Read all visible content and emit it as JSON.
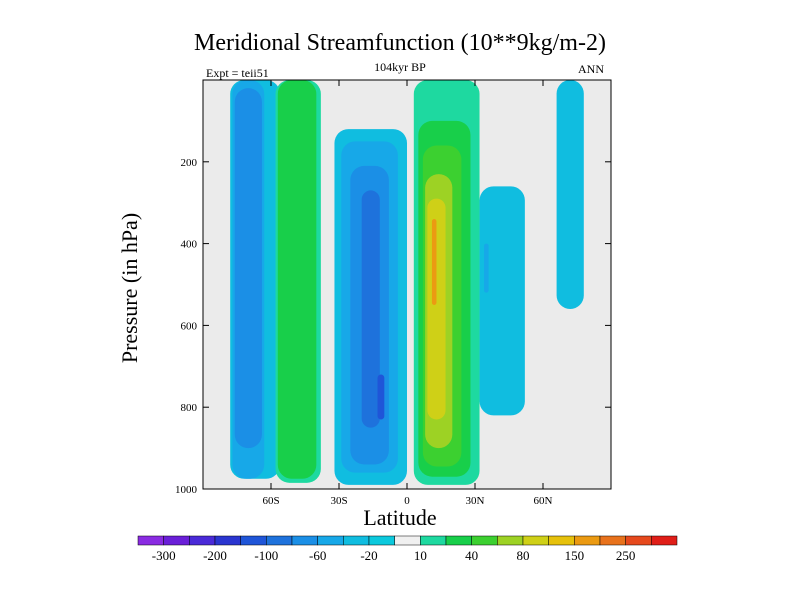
{
  "header": {
    "title": "Meridional Streamfunction (10**9kg/m-2)",
    "left_label": "Expt = teii51",
    "center_label": "104kyr BP",
    "right_label": "ANN"
  },
  "chart_data": {
    "type": "heatmap",
    "title": "Meridional Streamfunction (10**9kg/m-2)",
    "xlabel": "Latitude",
    "ylabel": "Pressure (in hPa)",
    "xlim": [
      -90,
      90
    ],
    "ylim": [
      0,
      1000
    ],
    "y_inverted": true,
    "xticks": [
      {
        "value": -60,
        "label": "60S"
      },
      {
        "value": -30,
        "label": "30S"
      },
      {
        "value": 0,
        "label": "0"
      },
      {
        "value": 30,
        "label": "30N"
      },
      {
        "value": 60,
        "label": "60N"
      }
    ],
    "yticks": [
      200,
      400,
      600,
      800,
      1000
    ],
    "colorbar": {
      "colors": [
        "#8a2be2",
        "#6a1fd8",
        "#4a2ad8",
        "#2a35d0",
        "#1f55d8",
        "#1e72dc",
        "#1b8fe6",
        "#17a8e8",
        "#10bde0",
        "#0cc9dd",
        "#f0f0f0",
        "#1ed9a0",
        "#18cf4a",
        "#3cd030",
        "#9dd224",
        "#cfd017",
        "#e6c10c",
        "#eb9a12",
        "#e8721c",
        "#e6491d",
        "#e01e18"
      ],
      "tick_labels": [
        "-300",
        "-200",
        "-100",
        "-60",
        "-20",
        "10",
        "40",
        "80",
        "150",
        "250"
      ]
    },
    "cells": [
      {
        "lat_min": -78,
        "lat_max": -56,
        "p_min": 0,
        "p_max": 975,
        "value": -20
      },
      {
        "lat_min": -77,
        "lat_max": -63,
        "p_min": 0,
        "p_max": 975,
        "value": -40
      },
      {
        "lat_min": -76,
        "lat_max": -64,
        "p_min": 20,
        "p_max": 900,
        "value": -60
      },
      {
        "lat_min": -58,
        "lat_max": -38,
        "p_min": 0,
        "p_max": 985,
        "value": 10
      },
      {
        "lat_min": -57,
        "lat_max": -40,
        "p_min": 0,
        "p_max": 975,
        "value": 30
      },
      {
        "lat_min": -32,
        "lat_max": 0,
        "p_min": 120,
        "p_max": 990,
        "value": -20
      },
      {
        "lat_min": -29,
        "lat_max": -4,
        "p_min": 150,
        "p_max": 960,
        "value": -40
      },
      {
        "lat_min": -25,
        "lat_max": -8,
        "p_min": 210,
        "p_max": 940,
        "value": -60
      },
      {
        "lat_min": -20,
        "lat_max": -12,
        "p_min": 270,
        "p_max": 850,
        "value": -80
      },
      {
        "lat_min": -13,
        "lat_max": -10,
        "p_min": 720,
        "p_max": 830,
        "value": -100
      },
      {
        "lat_min": 3,
        "lat_max": 32,
        "p_min": 0,
        "p_max": 990,
        "value": 10
      },
      {
        "lat_min": 5,
        "lat_max": 28,
        "p_min": 100,
        "p_max": 970,
        "value": 30
      },
      {
        "lat_min": 7,
        "lat_max": 24,
        "p_min": 160,
        "p_max": 945,
        "value": 60
      },
      {
        "lat_min": 8,
        "lat_max": 20,
        "p_min": 230,
        "p_max": 900,
        "value": 80
      },
      {
        "lat_min": 9,
        "lat_max": 17,
        "p_min": 290,
        "p_max": 830,
        "value": 100
      },
      {
        "lat_min": 11,
        "lat_max": 13,
        "p_min": 340,
        "p_max": 550,
        "value": 150
      },
      {
        "lat_min": 32,
        "lat_max": 52,
        "p_min": 260,
        "p_max": 820,
        "value": -20
      },
      {
        "lat_min": 34,
        "lat_max": 36,
        "p_min": 400,
        "p_max": 520,
        "value": -40
      },
      {
        "lat_min": 66,
        "lat_max": 78,
        "p_min": 0,
        "p_max": 560,
        "value": -20
      }
    ]
  }
}
